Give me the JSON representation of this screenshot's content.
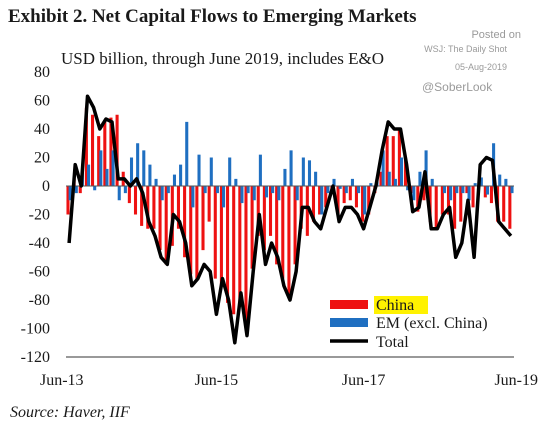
{
  "header": {
    "title": "Exhibit 2. Net Capital Flows to Emerging Markets",
    "subtitle": "USD billion, through June 2019, includes E&O"
  },
  "watermark": {
    "posted": "Posted on",
    "source": "WSJ: The Daily Shot",
    "date": "05-Aug-2019",
    "handle": "@SoberLook"
  },
  "footer": {
    "source": "Source: Haver, IIF"
  },
  "colors": {
    "china": "#ee1111",
    "em": "#1f6fc1",
    "total": "#000000",
    "highlight": "#fff200"
  },
  "chart_data": {
    "type": "bar",
    "y_tick_labels": [
      "80",
      "60",
      "40",
      "20",
      "0",
      "-20",
      "-40",
      "-60",
      "-80",
      "-100",
      "-120"
    ],
    "x_tick_labels": [
      "Jun-13",
      "Jun-15",
      "Jun-17",
      "Jun-19"
    ],
    "x_tick_months": [
      0,
      24,
      48,
      72
    ],
    "ylim": [
      -120,
      80
    ],
    "grid": false,
    "legend_position": "bottom-right",
    "x": [
      0,
      1,
      2,
      3,
      4,
      5,
      6,
      7,
      8,
      9,
      10,
      11,
      12,
      13,
      14,
      15,
      16,
      17,
      18,
      19,
      20,
      21,
      22,
      23,
      24,
      25,
      26,
      27,
      28,
      29,
      30,
      31,
      32,
      33,
      34,
      35,
      36,
      37,
      38,
      39,
      40,
      41,
      42,
      43,
      44,
      45,
      46,
      47,
      48,
      49,
      50,
      51,
      52,
      53,
      54,
      55,
      56,
      57,
      58,
      59,
      60,
      61,
      62,
      63,
      64,
      65,
      66,
      67,
      68,
      69,
      70,
      71,
      72
    ],
    "series": [
      {
        "name": "China",
        "kind": "bar",
        "values": [
          -20,
          5,
          -5,
          55,
          50,
          35,
          45,
          48,
          50,
          10,
          -12,
          -20,
          -28,
          -30,
          -30,
          -45,
          -55,
          -42,
          -30,
          -50,
          -62,
          -65,
          -45,
          -25,
          -65,
          -70,
          -82,
          -90,
          -82,
          -95,
          -58,
          -35,
          -45,
          -35,
          -55,
          -65,
          -78,
          -55,
          -30,
          -35,
          -25,
          -20,
          -15,
          -5,
          -20,
          -12,
          -10,
          -15,
          -25,
          -20,
          -5,
          10,
          35,
          35,
          40,
          20,
          -5,
          -18,
          -10,
          -25,
          -30,
          -20,
          -20,
          -30,
          -25,
          -5,
          -15,
          5,
          -8,
          -12,
          -25,
          -25,
          -30
        ]
      },
      {
        "name": "EM (excl. China)",
        "kind": "bar",
        "values": [
          -10,
          -5,
          10,
          15,
          -3,
          25,
          12,
          25,
          -10,
          -5,
          20,
          30,
          25,
          15,
          5,
          -10,
          -5,
          8,
          15,
          45,
          -15,
          22,
          -5,
          20,
          -5,
          -15,
          20,
          5,
          -12,
          -5,
          -10,
          22,
          -8,
          -5,
          -10,
          12,
          25,
          -10,
          20,
          18,
          10,
          -20,
          -5,
          5,
          -2,
          -5,
          5,
          -5,
          -20,
          2,
          5,
          25,
          10,
          5,
          20,
          -3,
          -10,
          10,
          25,
          5,
          0,
          -5,
          -10,
          -5,
          -5,
          -10,
          2,
          6,
          -6,
          30,
          8,
          5,
          -5
        ]
      },
      {
        "name": "Total",
        "kind": "line",
        "values": [
          -40,
          15,
          0,
          63,
          55,
          40,
          47,
          45,
          5,
          5,
          0,
          5,
          -5,
          -25,
          -35,
          -50,
          -55,
          -20,
          -25,
          -40,
          -70,
          -65,
          -55,
          -60,
          -90,
          -65,
          -80,
          -110,
          -75,
          -105,
          -60,
          -20,
          -55,
          -40,
          -50,
          -70,
          -80,
          -60,
          -15,
          -15,
          -25,
          -30,
          -15,
          0,
          -25,
          -15,
          -15,
          -20,
          -30,
          -15,
          0,
          25,
          45,
          40,
          40,
          15,
          -18,
          -15,
          10,
          -30,
          -30,
          -20,
          -15,
          -50,
          -40,
          -10,
          -50,
          15,
          20,
          18,
          -25,
          -30,
          -35
        ]
      }
    ]
  }
}
